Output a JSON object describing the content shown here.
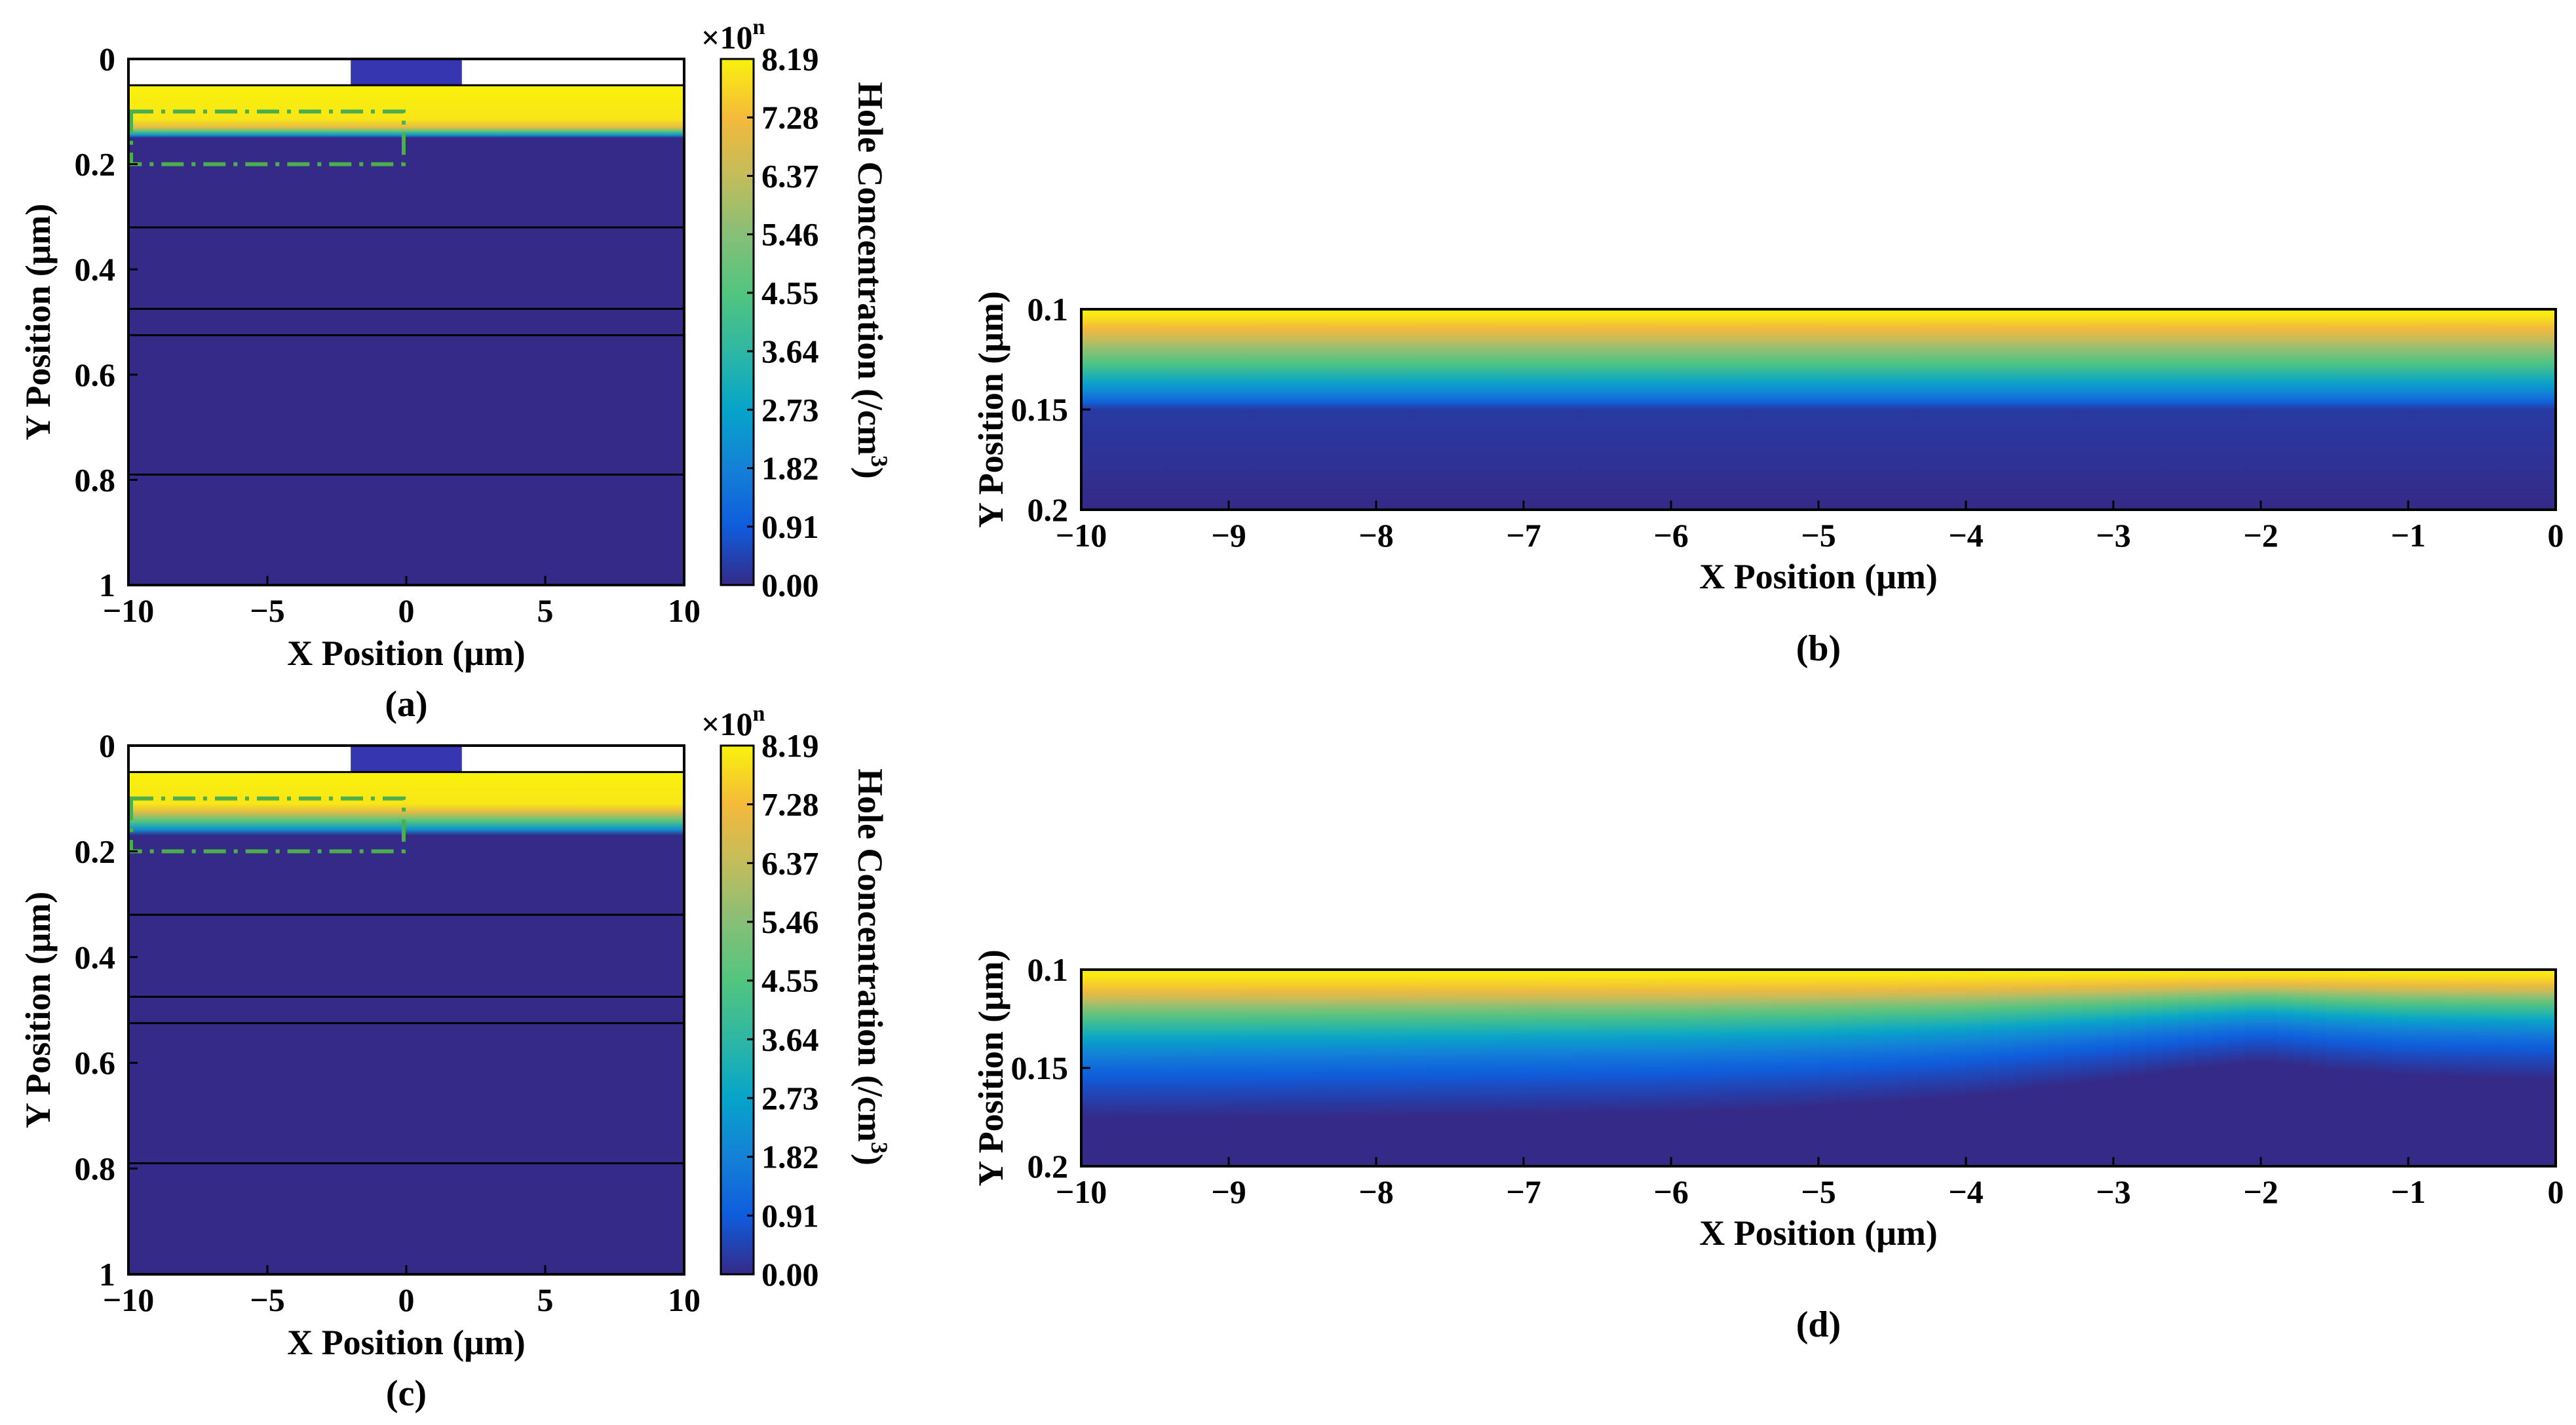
{
  "chart_data": [
    {
      "id": "a",
      "type": "heatmap",
      "panel_label": "(a)",
      "xlabel": "X Position (μm)",
      "ylabel": "Y Position (μm)",
      "xlim": [
        -10,
        10
      ],
      "ylim": [
        0,
        1
      ],
      "y_reversed": true,
      "x_ticks": [
        "−10",
        "−5",
        "0",
        "5",
        "10"
      ],
      "x_tick_values": [
        -10,
        -5,
        0,
        5,
        10
      ],
      "y_ticks": [
        "0",
        "0.2",
        "0.4",
        "0.6",
        "0.8",
        "1"
      ],
      "y_tick_values": [
        0,
        0.2,
        0.4,
        0.6,
        0.8,
        1
      ],
      "electrode_x_range": [
        -2,
        2
      ],
      "field_y_range": [
        0.05,
        1
      ],
      "high_region_bottom_y": 0.13,
      "transition_bottom_y": 0.15,
      "layer_boundaries_y": [
        0.32,
        0.475,
        0.525,
        0.79
      ],
      "zoom_box": {
        "x": [
          -10,
          0
        ],
        "y": [
          0.1,
          0.2
        ]
      },
      "colorbar": {
        "label": "Hole Concentration (/cm",
        "label_superscript": "3",
        "label_close": ")",
        "multiplier_base": "×10",
        "multiplier_exp": "n",
        "ticks": [
          "0.00",
          "0.91",
          "1.82",
          "2.73",
          "3.64",
          "4.55",
          "5.46",
          "6.37",
          "7.28",
          "8.19"
        ],
        "tick_values": [
          0.0,
          0.91,
          1.82,
          2.73,
          3.64,
          4.55,
          5.46,
          6.37,
          7.28,
          8.19
        ]
      }
    },
    {
      "id": "b",
      "type": "heatmap",
      "panel_label": "(b)",
      "xlabel": "X Position (μm)",
      "ylabel": "Y Position (μm)",
      "xlim": [
        -10,
        0
      ],
      "ylim": [
        0.1,
        0.2
      ],
      "y_reversed": true,
      "x_ticks": [
        "−10",
        "−9",
        "−8",
        "−7",
        "−6",
        "−5",
        "−4",
        "−3",
        "−2",
        "−1",
        "0"
      ],
      "x_tick_values": [
        -10,
        -9,
        -8,
        -7,
        -6,
        -5,
        -4,
        -3,
        -2,
        -1,
        0
      ],
      "y_ticks": [
        "0.1",
        "0.15",
        "0.2"
      ],
      "y_tick_values": [
        0.1,
        0.15,
        0.2
      ],
      "profile_depth_offsets": [
        0,
        0.03,
        0.06,
        0.09,
        0.12,
        0.15,
        0.18,
        0.22,
        0.26,
        0.3,
        0.34,
        0.38,
        0.42,
        0.46,
        0.5,
        1.0
      ],
      "profile_values": [
        8.19,
        8.0,
        7.7,
        7.3,
        6.9,
        6.4,
        5.9,
        5.3,
        4.6,
        3.9,
        3.2,
        2.5,
        1.8,
        1.1,
        0.3,
        0.0
      ]
    },
    {
      "id": "c",
      "type": "heatmap",
      "panel_label": "(c)",
      "xlabel": "X Position (μm)",
      "ylabel": "Y Position (μm)",
      "xlim": [
        -10,
        10
      ],
      "ylim": [
        0,
        1
      ],
      "y_reversed": true,
      "x_ticks": [
        "−10",
        "−5",
        "0",
        "5",
        "10"
      ],
      "x_tick_values": [
        -10,
        -5,
        0,
        5,
        10
      ],
      "y_ticks": [
        "0",
        "0.2",
        "0.4",
        "0.6",
        "0.8",
        "1"
      ],
      "y_tick_values": [
        0,
        0.2,
        0.4,
        0.6,
        0.8,
        1
      ],
      "electrode_x_range": [
        -2,
        2
      ],
      "field_y_range": [
        0.05,
        1
      ],
      "high_region_bottom_y": 0.125,
      "transition_bottom_y": 0.17,
      "layer_boundaries_y": [
        0.32,
        0.475,
        0.525,
        0.79
      ],
      "zoom_box": {
        "x": [
          -10,
          0
        ],
        "y": [
          0.1,
          0.2
        ]
      },
      "colorbar": {
        "label": "Hole Concentration (/cm",
        "label_superscript": "3",
        "label_close": ")",
        "multiplier_base": "×10",
        "multiplier_exp": "n",
        "ticks": [
          "0.00",
          "0.91",
          "1.82",
          "2.73",
          "3.64",
          "4.55",
          "5.46",
          "6.37",
          "7.28",
          "8.19"
        ],
        "tick_values": [
          0.0,
          0.91,
          1.82,
          2.73,
          3.64,
          4.55,
          5.46,
          6.37,
          7.28,
          8.19
        ]
      }
    },
    {
      "id": "d",
      "type": "heatmap",
      "panel_label": "(d)",
      "xlabel": "X Position (μm)",
      "ylabel": "Y Position (μm)",
      "xlim": [
        -10,
        0
      ],
      "ylim": [
        0.1,
        0.2
      ],
      "y_reversed": true,
      "x_ticks": [
        "−10",
        "−9",
        "−8",
        "−7",
        "−6",
        "−5",
        "−4",
        "−3",
        "−2",
        "−1",
        "0"
      ],
      "x_tick_values": [
        -10,
        -9,
        -8,
        -7,
        -6,
        -5,
        -4,
        -3,
        -2,
        -1,
        0
      ],
      "y_ticks": [
        "0.1",
        "0.15",
        "0.2"
      ],
      "y_tick_values": [
        0.1,
        0.15,
        0.2
      ],
      "profile_depth_offsets": [
        0,
        0.05,
        0.1,
        0.15,
        0.2,
        0.25,
        0.3,
        0.35,
        0.4,
        0.45,
        0.5,
        0.55,
        0.6,
        0.65,
        0.7,
        0.75,
        0.8,
        0.85,
        0.9,
        0.95,
        1.0
      ],
      "profile_values": [
        8.19,
        7.95,
        7.6,
        7.1,
        6.4,
        5.6,
        4.8,
        4.1,
        3.5,
        2.9,
        2.4,
        2.0,
        1.6,
        1.3,
        1.0,
        0.8,
        0.6,
        0.45,
        0.3,
        0.15,
        0.0
      ],
      "boundary_x": [
        -10,
        -8,
        -6,
        -5,
        -4,
        -3,
        -2.5,
        -2,
        -1.5,
        -1,
        0
      ],
      "boundary_y": [
        0.166,
        0.165,
        0.163,
        0.16,
        0.155,
        0.146,
        0.141,
        0.137,
        0.141,
        0.144,
        0.146
      ]
    }
  ]
}
